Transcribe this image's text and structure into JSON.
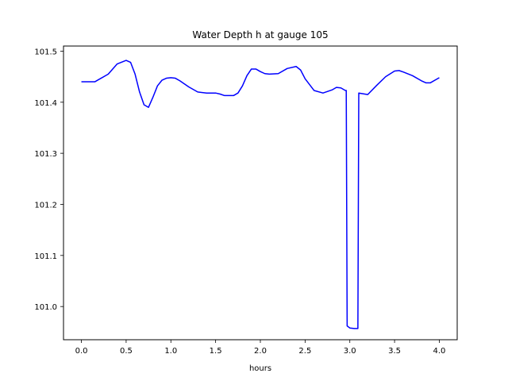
{
  "chart_data": {
    "type": "line",
    "title": "Water Depth h at gauge 105",
    "xlabel": "hours",
    "ylabel": "",
    "xlim": [
      -0.2,
      4.2
    ],
    "ylim": [
      100.935,
      101.51
    ],
    "xticks": [
      0.0,
      0.5,
      1.0,
      1.5,
      2.0,
      2.5,
      3.0,
      3.5,
      4.0
    ],
    "xtick_labels": [
      "0.0",
      "0.5",
      "1.0",
      "1.5",
      "2.0",
      "2.5",
      "3.0",
      "3.5",
      "4.0"
    ],
    "yticks": [
      101.0,
      101.1,
      101.2,
      101.3,
      101.4,
      101.5
    ],
    "ytick_labels": [
      "101.0",
      "101.1",
      "101.2",
      "101.3",
      "101.4",
      "101.5"
    ],
    "grid": false,
    "series": [
      {
        "color": "#0000ff",
        "x": [
          0.0,
          0.15,
          0.3,
          0.4,
          0.5,
          0.55,
          0.6,
          0.65,
          0.7,
          0.75,
          0.8,
          0.85,
          0.9,
          0.95,
          1.0,
          1.05,
          1.1,
          1.2,
          1.3,
          1.4,
          1.5,
          1.55,
          1.6,
          1.65,
          1.7,
          1.75,
          1.8,
          1.85,
          1.9,
          1.95,
          2.0,
          2.05,
          2.1,
          2.2,
          2.3,
          2.4,
          2.45,
          2.5,
          2.6,
          2.7,
          2.8,
          2.85,
          2.9,
          2.95,
          2.96,
          2.97,
          3.0,
          3.05,
          3.09,
          3.1,
          3.2,
          3.3,
          3.4,
          3.5,
          3.55,
          3.6,
          3.7,
          3.8,
          3.85,
          3.9,
          4.0
        ],
        "y": [
          101.44,
          101.44,
          101.455,
          101.475,
          101.482,
          101.478,
          101.455,
          101.42,
          101.395,
          101.39,
          101.41,
          101.432,
          101.443,
          101.447,
          101.448,
          101.447,
          101.442,
          101.43,
          101.42,
          101.418,
          101.418,
          101.416,
          101.413,
          101.413,
          101.413,
          101.418,
          101.432,
          101.452,
          101.465,
          101.465,
          101.46,
          101.456,
          101.455,
          101.456,
          101.466,
          101.47,
          101.463,
          101.446,
          101.423,
          101.418,
          101.424,
          101.429,
          101.428,
          101.423,
          101.423,
          100.962,
          100.958,
          100.957,
          100.957,
          101.418,
          101.415,
          101.433,
          101.45,
          101.461,
          101.462,
          101.459,
          101.452,
          101.442,
          101.438,
          101.438,
          101.448
        ]
      }
    ]
  }
}
